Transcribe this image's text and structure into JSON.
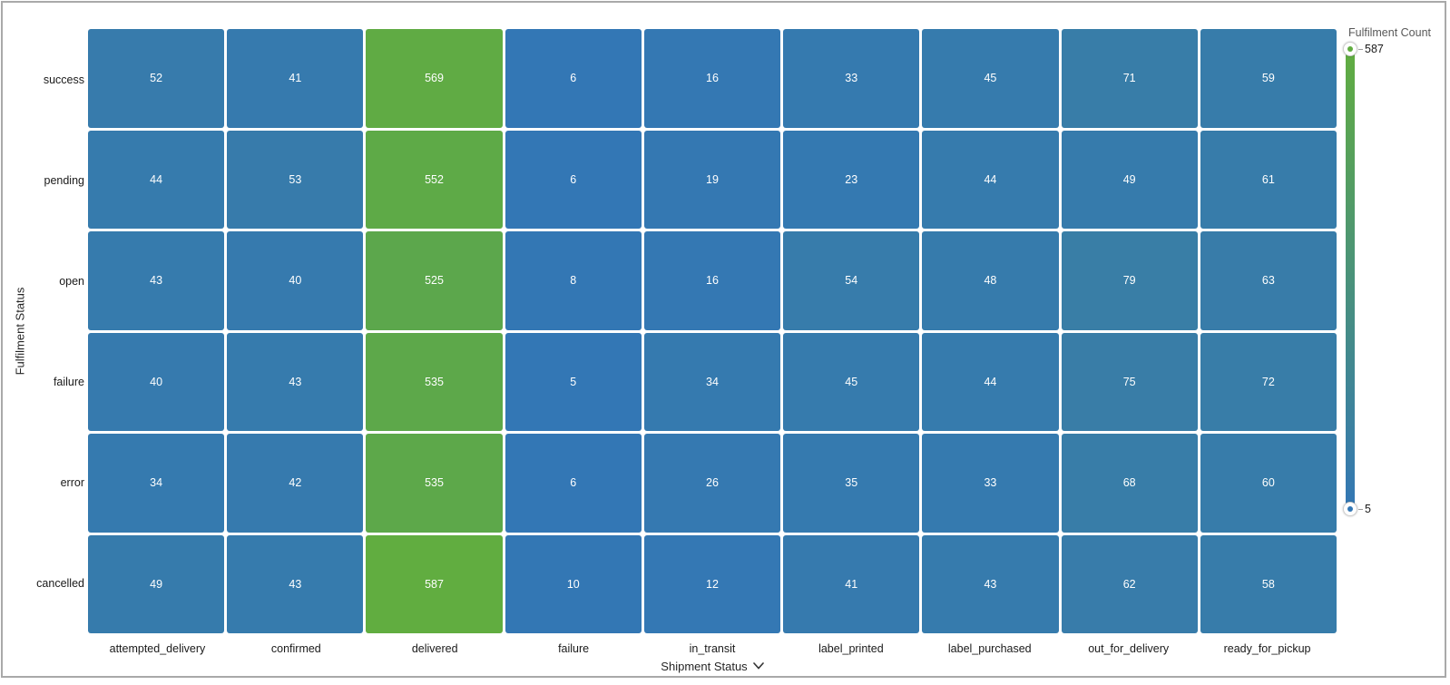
{
  "chart_data": {
    "type": "heatmap",
    "title": "",
    "xlabel": "Shipment Status",
    "ylabel": "Fulfilment Status",
    "x_categories": [
      "attempted_delivery",
      "confirmed",
      "delivered",
      "failure",
      "in_transit",
      "label_printed",
      "label_purchased",
      "out_for_delivery",
      "ready_for_pickup"
    ],
    "y_categories": [
      "success",
      "pending",
      "open",
      "failure",
      "error",
      "cancelled"
    ],
    "matrix": [
      [
        52,
        41,
        569,
        6,
        16,
        33,
        45,
        71,
        59
      ],
      [
        44,
        53,
        552,
        6,
        19,
        23,
        44,
        49,
        61
      ],
      [
        43,
        40,
        525,
        8,
        16,
        54,
        48,
        79,
        63
      ],
      [
        40,
        43,
        535,
        5,
        34,
        45,
        44,
        75,
        72
      ],
      [
        34,
        42,
        535,
        6,
        26,
        35,
        33,
        68,
        60
      ],
      [
        49,
        43,
        587,
        10,
        12,
        41,
        43,
        62,
        58
      ]
    ],
    "legend": {
      "title": "Fulfilment Count",
      "max": 587,
      "min": 5,
      "position": "right"
    },
    "colors": {
      "min_color": "#3377b5",
      "max_color": "#61ad40",
      "cell_text": "#ffffff",
      "grid_gap": "#ffffff"
    },
    "layout": {
      "grid_on": false,
      "x_axis_dropdown_chevron": true
    }
  }
}
